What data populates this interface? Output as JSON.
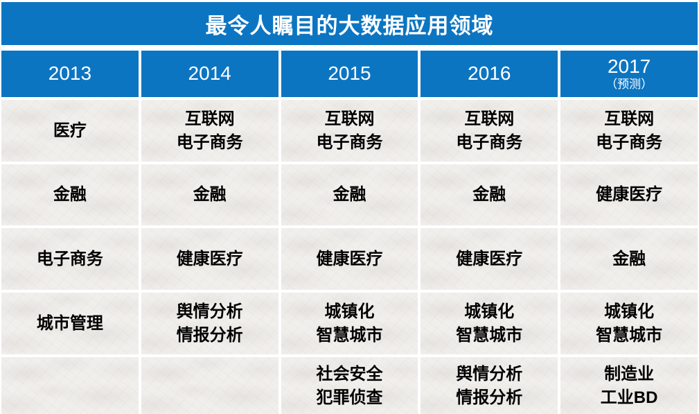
{
  "colors": {
    "header_blue": "#0c75c2",
    "header_text": "#ffffff",
    "body_text": "#000000",
    "paper_background": "#f1efec",
    "grid_line": "#ffffff"
  },
  "chart_data": {
    "type": "table",
    "title": "最令人瞩目的大数据应用领域",
    "headers": [
      {
        "year": "2013",
        "note": ""
      },
      {
        "year": "2014",
        "note": ""
      },
      {
        "year": "2015",
        "note": ""
      },
      {
        "year": "2016",
        "note": ""
      },
      {
        "year": "2017",
        "note": "（预测）"
      }
    ],
    "rows": [
      [
        [
          "医疗"
        ],
        [
          "互联网",
          "电子商务"
        ],
        [
          "互联网",
          "电子商务"
        ],
        [
          "互联网",
          "电子商务"
        ],
        [
          "互联网",
          "电子商务"
        ]
      ],
      [
        [
          "金融"
        ],
        [
          "金融"
        ],
        [
          "金融"
        ],
        [
          "金融"
        ],
        [
          "健康医疗"
        ]
      ],
      [
        [
          "电子商务"
        ],
        [
          "健康医疗"
        ],
        [
          "健康医疗"
        ],
        [
          "健康医疗"
        ],
        [
          "金融"
        ]
      ],
      [
        [
          "城市管理"
        ],
        [
          "舆情分析",
          "情报分析"
        ],
        [
          "城镇化",
          "智慧城市"
        ],
        [
          "城镇化",
          "智慧城市"
        ],
        [
          "城镇化",
          "智慧城市"
        ]
      ],
      [
        [],
        [],
        [
          "社会安全",
          "犯罪侦查"
        ],
        [
          "舆情分析",
          "情报分析"
        ],
        [
          "制造业",
          "工业BD"
        ]
      ]
    ]
  }
}
